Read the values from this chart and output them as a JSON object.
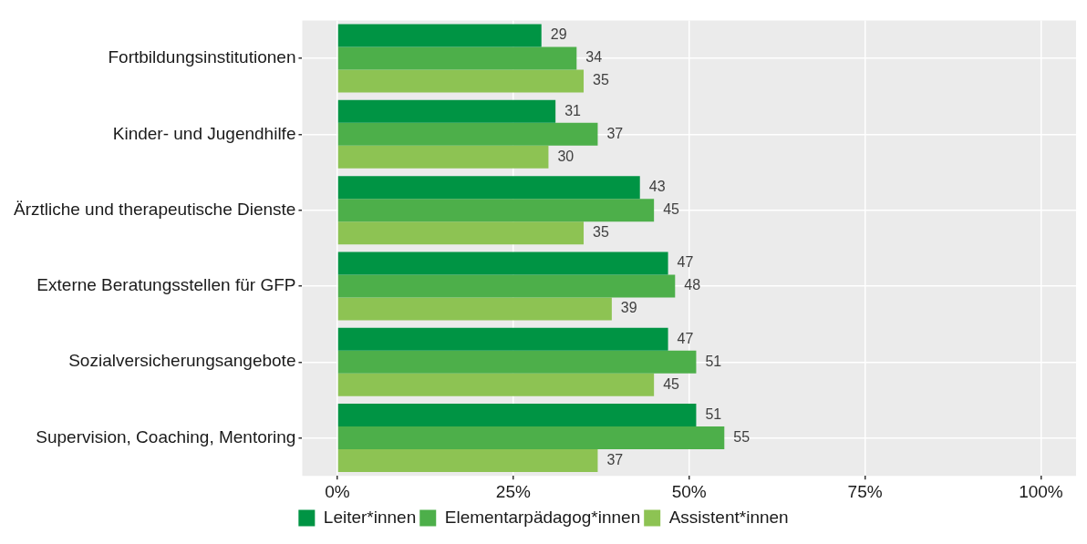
{
  "chart_data": {
    "type": "bar",
    "orientation": "horizontal",
    "categories": [
      "Fortbildungsinstitutionen",
      "Kinder- und Jugendhilfe",
      "Ärztliche und therapeutische Dienste",
      "Externe Beratungsstellen für GFP",
      "Sozialversicherungsangebote",
      "Supervision, Coaching, Mentoring"
    ],
    "series": [
      {
        "name": "Leiter*innen",
        "color": "#009444",
        "values": [
          29,
          31,
          43,
          47,
          47,
          51
        ]
      },
      {
        "name": "Elementarpädagog*innen",
        "color": "#4daf4a",
        "values": [
          34,
          37,
          45,
          48,
          51,
          55
        ]
      },
      {
        "name": "Assistent*innen",
        "color": "#8dc353",
        "values": [
          35,
          30,
          35,
          39,
          45,
          37
        ]
      }
    ],
    "xlim": [
      -5,
      105
    ],
    "xticks": [
      {
        "value": 0,
        "label": "0%"
      },
      {
        "value": 25,
        "label": "25%"
      },
      {
        "value": 50,
        "label": "50%"
      },
      {
        "value": 75,
        "label": "75%"
      },
      {
        "value": 100,
        "label": "100%"
      }
    ],
    "grid": true,
    "legend": "bottom",
    "data_labels": true
  }
}
